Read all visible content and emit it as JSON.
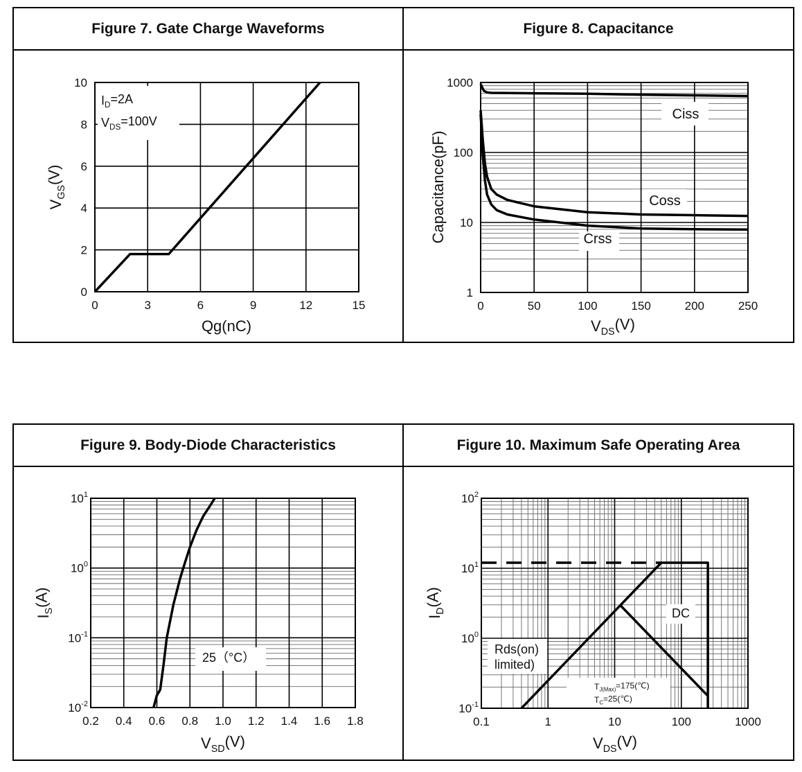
{
  "figures": [
    {
      "title": "Figure 7. Gate Charge Waveforms",
      "chart_data": {
        "type": "line",
        "xscale": "linear",
        "yscale": "linear",
        "xlim": [
          0,
          15
        ],
        "ylim": [
          0,
          10
        ],
        "xticks": [
          "0",
          "3",
          "6",
          "9",
          "12",
          "15"
        ],
        "yticks": [
          "0",
          "2",
          "4",
          "6",
          "8",
          "10"
        ],
        "xlabel": {
          "text": "Qg(nC)",
          "sub": "",
          "suffix": ""
        },
        "ylabel": {
          "text": "V",
          "sub": "GS",
          "suffix": "(V)"
        },
        "grid": true,
        "series": [
          {
            "x": [
              0,
              2,
              4.2,
              12.8
            ],
            "y": [
              0,
              1.8,
              1.8,
              10
            ]
          }
        ],
        "annotations": [
          {
            "text": "I",
            "sub": "D",
            "suffix": "=2A"
          },
          {
            "text": "V",
            "sub": "DS",
            "suffix": "=100V"
          }
        ]
      }
    },
    {
      "title": "Figure 8. Capacitance",
      "chart_data": {
        "type": "line",
        "xscale": "linear",
        "yscale": "log",
        "xlim": [
          0,
          250
        ],
        "ylim": [
          1,
          1000
        ],
        "xticks": [
          "0",
          "50",
          "100",
          "150",
          "200",
          "250"
        ],
        "yticks": [
          "1",
          "10",
          "100",
          "1000"
        ],
        "xlabel": {
          "text": "V",
          "sub": "DS",
          "suffix": "(V)"
        },
        "ylabel": {
          "text": "Capacitance(pF)",
          "sub": "",
          "suffix": ""
        },
        "grid": true,
        "series": [
          {
            "name": "Ciss",
            "x": [
              0,
              1,
              3,
              6,
              10,
              50,
              100,
              150,
              200,
              250
            ],
            "y": [
              950,
              880,
              760,
              720,
              710,
              700,
              690,
              670,
              655,
              640
            ]
          },
          {
            "name": "Coss",
            "x": [
              0,
              1,
              2,
              4,
              6,
              10,
              15,
              25,
              50,
              100,
              150,
              200,
              250
            ],
            "y": [
              400,
              250,
              150,
              70,
              45,
              30,
              25,
              21,
              17,
              14,
              13,
              12.7,
              12.4
            ]
          },
          {
            "name": "Crss",
            "x": [
              0,
              1,
              2,
              4,
              6,
              10,
              15,
              25,
              50,
              100,
              150,
              200,
              250
            ],
            "y": [
              350,
              200,
              90,
              40,
              25,
              18,
              15,
              13,
              11,
              9,
              8.2,
              8,
              7.9
            ]
          }
        ]
      }
    },
    {
      "title": "Figure 9. Body-Diode Characteristics",
      "chart_data": {
        "type": "line",
        "xscale": "linear",
        "yscale": "log",
        "xlim": [
          0.2,
          1.8
        ],
        "ylim": [
          0.01,
          10
        ],
        "xticks": [
          "0.2",
          "0.4",
          "0.6",
          "0.8",
          "1.0",
          "1.2",
          "1.4",
          "1.6",
          "1.8"
        ],
        "yticks": [
          {
            "base": "10",
            "exp": "-2"
          },
          {
            "base": "10",
            "exp": "-1"
          },
          {
            "base": "10",
            "exp": "0"
          },
          {
            "base": "10",
            "exp": "1"
          }
        ],
        "xlabel": {
          "text": "V",
          "sub": "SD",
          "suffix": "(V)"
        },
        "ylabel": {
          "text": "I",
          "sub": "S",
          "suffix": "(A)"
        },
        "grid": true,
        "series": [
          {
            "x": [
              0.58,
              0.6,
              0.62,
              0.64,
              0.66,
              0.7,
              0.74,
              0.77,
              0.8,
              0.84,
              0.88,
              0.92,
              0.95
            ],
            "y": [
              0.01,
              0.015,
              0.018,
              0.04,
              0.1,
              0.3,
              0.7,
              1.2,
              2,
              3.5,
              5.5,
              7.7,
              10
            ]
          }
        ],
        "annotations": [
          {
            "text": "25（°C）"
          }
        ]
      }
    },
    {
      "title": "Figure 10. Maximum Safe Operating Area",
      "chart_data": {
        "type": "line",
        "xscale": "log",
        "yscale": "log",
        "xlim": [
          0.1,
          1000
        ],
        "ylim": [
          0.1,
          100
        ],
        "xticks": [
          "0.1",
          "1",
          "10",
          "100",
          "1000"
        ],
        "yticks": [
          {
            "base": "10",
            "exp": "-1"
          },
          {
            "base": "10",
            "exp": "0"
          },
          {
            "base": "10",
            "exp": "1"
          },
          {
            "base": "10",
            "exp": "2"
          }
        ],
        "xlabel": {
          "text": "V",
          "sub": "DS",
          "suffix": "(V)"
        },
        "ylabel": {
          "text": "I",
          "sub": "D",
          "suffix": "(A)"
        },
        "grid": true,
        "series": [
          {
            "style": "dashed",
            "x": [
              0.1,
              50
            ],
            "y": [
              12,
              12
            ]
          },
          {
            "name": "Rds(on) limited)",
            "x": [
              0.4,
              50
            ],
            "y": [
              0.1,
              12
            ]
          },
          {
            "name": "DC",
            "x": [
              50,
              250,
              250
            ],
            "y": [
              12,
              12,
              0.1
            ]
          },
          {
            "x": [
              12,
              250
            ],
            "y": [
              3,
              0.15
            ]
          }
        ],
        "annotations": [
          {
            "text": "Rds(on)"
          },
          {
            "text": "limited)"
          },
          {
            "text": "DC"
          },
          {
            "text": "T",
            "sub": "J(Max)",
            "suffix": "=175(℃)"
          },
          {
            "text": "T",
            "sub": "C",
            "suffix": "=25(℃)"
          }
        ]
      }
    }
  ]
}
